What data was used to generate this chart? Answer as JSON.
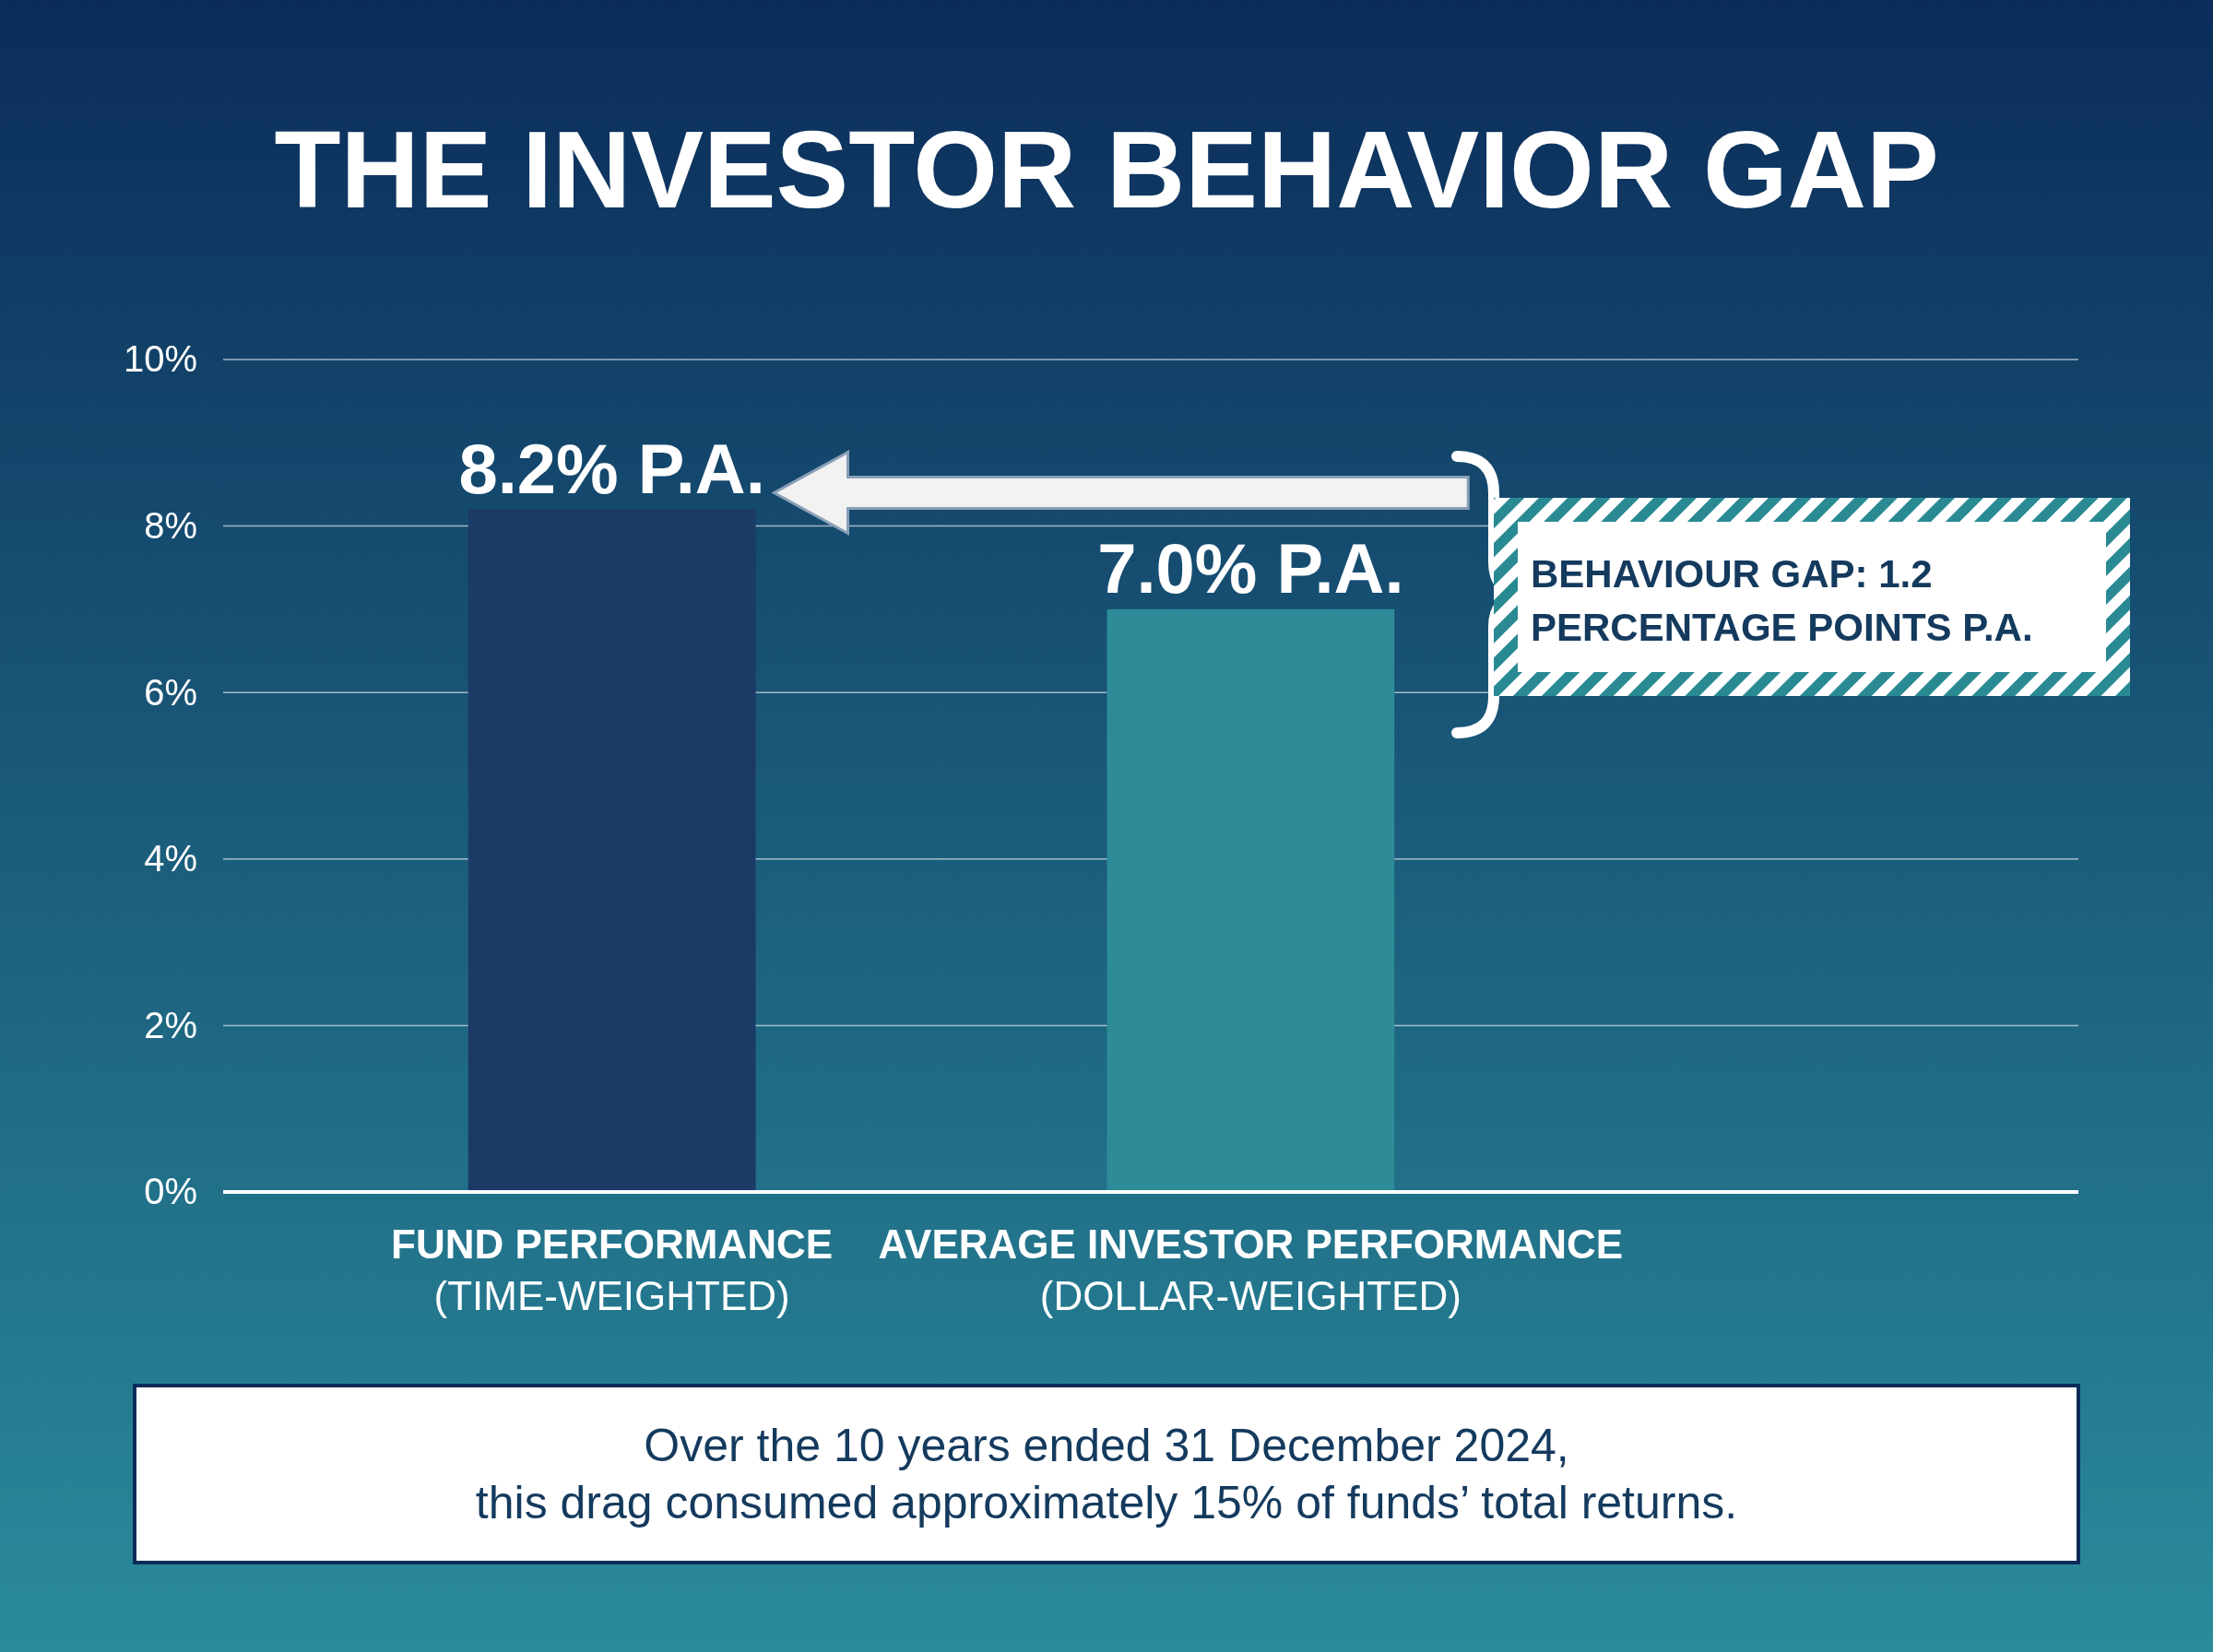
{
  "chart_data": {
    "type": "bar",
    "title": "THE INVESTOR BEHAVIOR GAP",
    "categories": [
      "FUND PERFORMANCE\n(TIME-WEIGHTED)",
      "AVERAGE INVESTOR PERFORMANCE\n(DOLLAR-WEIGHTED)"
    ],
    "values": [
      8.2,
      7.0
    ],
    "colors": [
      "#1b3a66",
      "#2e8b98"
    ],
    "value_labels": [
      "8.2% P.A.",
      "7.0% P.A."
    ],
    "ylim": [
      0,
      10
    ],
    "yticks": [
      {
        "value": 0,
        "label": "0%"
      },
      {
        "value": 2,
        "label": "2%"
      },
      {
        "value": 4,
        "label": "4%"
      },
      {
        "value": 6,
        "label": "6%"
      },
      {
        "value": 8,
        "label": "8%"
      },
      {
        "value": 10,
        "label": "10%"
      }
    ],
    "grid": "y",
    "annotations": [
      "BEHAVIOUR GAP: 1.2\nPERCENTAGE POINTS P.A.",
      "Over the 10 years ended 31 December 2024,\nthis drag consumed approximately 15% of funds’ total returns."
    ]
  }
}
